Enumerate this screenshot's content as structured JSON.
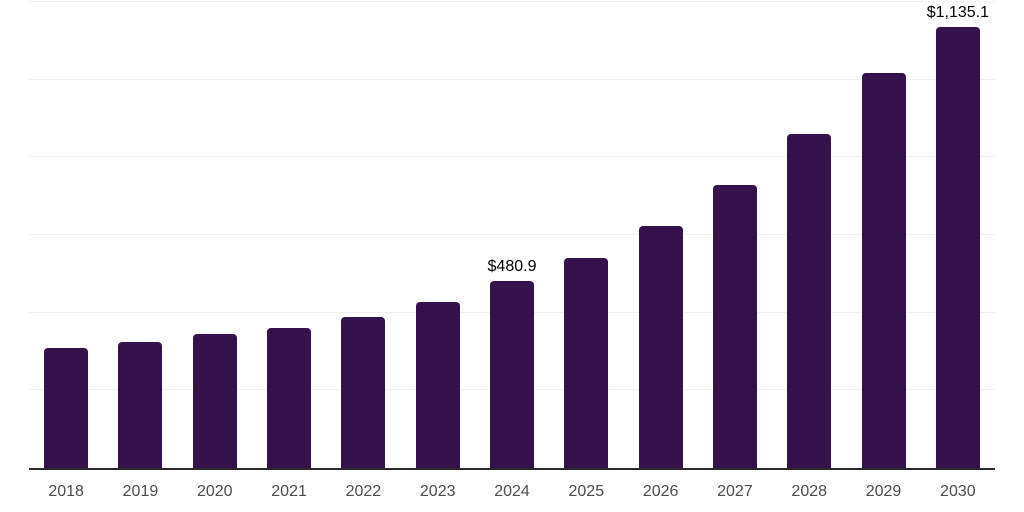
{
  "chart_data": {
    "type": "bar",
    "title": "",
    "xlabel": "",
    "ylabel": "",
    "categories": [
      "2018",
      "2019",
      "2020",
      "2021",
      "2022",
      "2023",
      "2024",
      "2025",
      "2026",
      "2027",
      "2028",
      "2029",
      "2030"
    ],
    "values": [
      308,
      324,
      344,
      361,
      389,
      428,
      480.9,
      542,
      622,
      730,
      860,
      1018,
      1135.1
    ],
    "value_labels": [
      "",
      "",
      "",
      "",
      "",
      "",
      "$480.9",
      "",
      "",
      "",
      "",
      "",
      "$1,135.1"
    ],
    "ylim": [
      0,
      1200
    ],
    "gridline_step": 200,
    "grid": "horizontal-only",
    "legend": "none",
    "y_axis_labels_visible": false
  },
  "colors": {
    "bar": "#35114B",
    "axis_line": "#2b2b2b",
    "gridline": "#f1f1f1",
    "tick_label": "#4d4d4d",
    "value_label": "#000000",
    "background": "#ffffff"
  }
}
